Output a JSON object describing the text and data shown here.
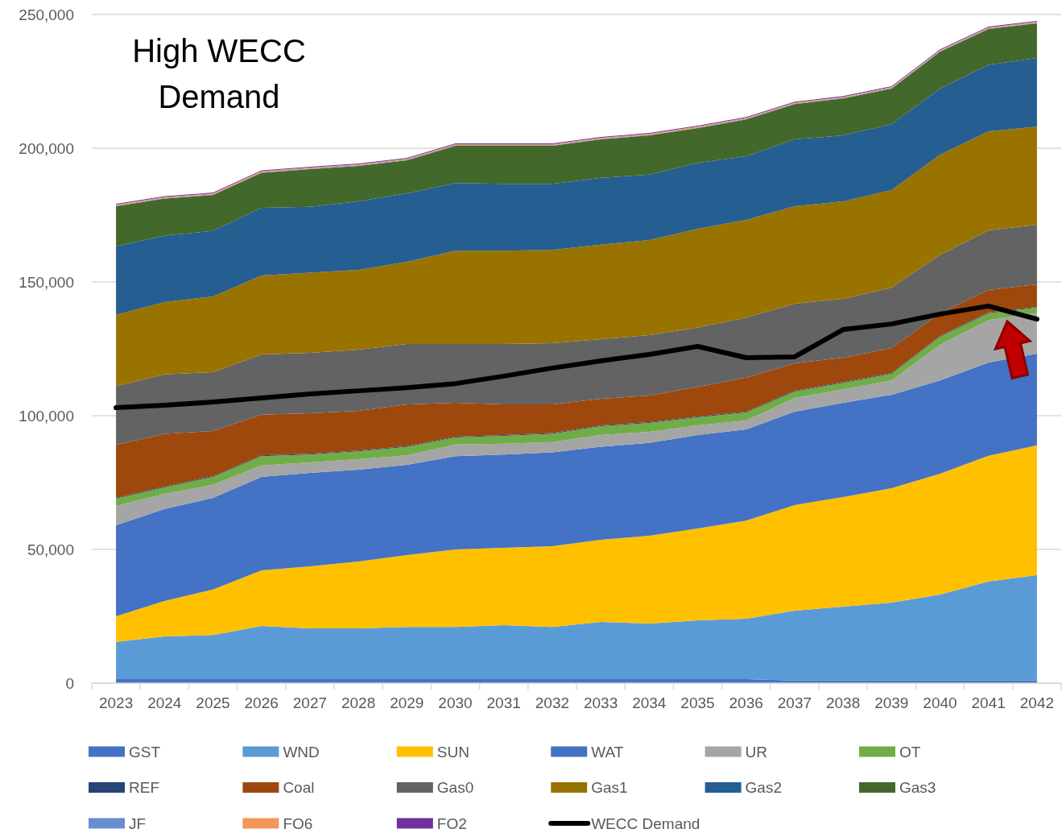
{
  "chart_data": {
    "type": "area",
    "stacked": true,
    "title": "High WECC Demand",
    "categories": [
      "2023",
      "2024",
      "2025",
      "2026",
      "2027",
      "2028",
      "2029",
      "2030",
      "2031",
      "2032",
      "2033",
      "2034",
      "2035",
      "2036",
      "2037",
      "2038",
      "2039",
      "2040",
      "2041",
      "2042"
    ],
    "series": [
      {
        "name": "GST",
        "color": "#4472c4",
        "values": [
          1500,
          1500,
          1500,
          1500,
          1500,
          1500,
          1500,
          1500,
          1500,
          1500,
          1500,
          1500,
          1500,
          1500,
          1000,
          1000,
          1000,
          1000,
          1000,
          1000
        ]
      },
      {
        "name": "WND",
        "color": "#5b9bd5",
        "values": [
          13900,
          16000,
          16500,
          19900,
          19000,
          19000,
          19500,
          19500,
          20200,
          19500,
          21400,
          20800,
          22000,
          22600,
          26100,
          27600,
          29100,
          32100,
          37000,
          39400
        ]
      },
      {
        "name": "SUN",
        "color": "#ffc000",
        "values": [
          9600,
          13200,
          17000,
          20800,
          23200,
          25000,
          26900,
          29000,
          28900,
          30200,
          30700,
          32800,
          34300,
          36700,
          39500,
          41000,
          42800,
          45200,
          47000,
          48500
        ]
      },
      {
        "name": "WAT",
        "color": "#4472c4",
        "values": [
          34000,
          34400,
          34300,
          34900,
          34900,
          34300,
          33700,
          34900,
          34900,
          35100,
          34800,
          34700,
          35000,
          34100,
          34900,
          35200,
          34900,
          34900,
          34900,
          34300
        ]
      },
      {
        "name": "UR",
        "color": "#a5a5a5",
        "values": [
          7300,
          5700,
          4900,
          4300,
          3900,
          3900,
          3600,
          4300,
          4000,
          3800,
          4400,
          4200,
          3600,
          3300,
          5100,
          5100,
          5400,
          13300,
          15900,
          15100
        ]
      },
      {
        "name": "OT",
        "color": "#70ad47",
        "values": [
          2700,
          2400,
          2900,
          3500,
          3000,
          3000,
          3100,
          2700,
          3000,
          3100,
          3300,
          3300,
          3000,
          3000,
          2400,
          2400,
          2500,
          3000,
          2500,
          2100
        ]
      },
      {
        "name": "REF",
        "color": "#264478",
        "values": [
          300,
          300,
          300,
          300,
          300,
          300,
          300,
          300,
          300,
          300,
          300,
          300,
          300,
          300,
          300,
          300,
          300,
          300,
          300,
          300
        ]
      },
      {
        "name": "Coal",
        "color": "#9e480e",
        "values": [
          19800,
          19700,
          16900,
          15200,
          15100,
          14800,
          15600,
          12600,
          11400,
          10700,
          9900,
          9900,
          11100,
          12700,
          10300,
          9100,
          9300,
          8500,
          8400,
          8400
        ]
      },
      {
        "name": "Gas0",
        "color": "#636363",
        "values": [
          22000,
          22200,
          22000,
          22500,
          22600,
          22900,
          22600,
          22000,
          22600,
          22900,
          22300,
          22600,
          22200,
          22500,
          22300,
          22000,
          22600,
          21900,
          22300,
          22300
        ]
      },
      {
        "name": "Gas1",
        "color": "#997300",
        "values": [
          26600,
          27100,
          28300,
          29500,
          30000,
          29800,
          30700,
          34900,
          34900,
          34900,
          35300,
          35600,
          36900,
          36500,
          36400,
          36400,
          36400,
          37400,
          37000,
          36700
        ]
      },
      {
        "name": "Gas2",
        "color": "#255e91",
        "values": [
          25600,
          24800,
          24500,
          25300,
          24600,
          25600,
          25600,
          25300,
          25000,
          24700,
          25000,
          24400,
          24600,
          23800,
          25000,
          24700,
          24700,
          24700,
          24900,
          25600
        ]
      },
      {
        "name": "Gas3",
        "color": "#43682b",
        "values": [
          15000,
          13900,
          13400,
          13100,
          14100,
          13300,
          12400,
          13900,
          14200,
          14200,
          14400,
          14700,
          13000,
          13800,
          13200,
          13800,
          13300,
          13800,
          13400,
          13000
        ]
      },
      {
        "name": "JF",
        "color": "#698ed0",
        "values": [
          200,
          200,
          200,
          200,
          200,
          200,
          200,
          200,
          200,
          200,
          200,
          200,
          200,
          200,
          200,
          200,
          200,
          200,
          200,
          200
        ]
      },
      {
        "name": "FO6",
        "color": "#f1975a",
        "values": [
          400,
          400,
          400,
          400,
          400,
          400,
          400,
          400,
          400,
          400,
          400,
          400,
          400,
          400,
          400,
          400,
          400,
          400,
          400,
          400
        ]
      },
      {
        "name": "FO2",
        "color": "#7030a0",
        "values": [
          300,
          300,
          300,
          300,
          300,
          300,
          300,
          300,
          300,
          300,
          300,
          300,
          300,
          300,
          300,
          300,
          300,
          300,
          300,
          300
        ]
      },
      {
        "name": "WECC Demand",
        "type": "line",
        "color": "#000000",
        "values": [
          103000,
          103900,
          105100,
          106600,
          108100,
          109300,
          110500,
          112000,
          114800,
          117800,
          120500,
          122900,
          125900,
          121700,
          122000,
          132200,
          134300,
          138000,
          141000,
          136100
        ]
      }
    ],
    "ylim": [
      0,
      250000
    ],
    "yticks": [
      0,
      {
        "value": 50000,
        "label": "50,000"
      },
      {
        "value": 100000,
        "label": "100,000"
      },
      {
        "value": 150000,
        "label": "150,000"
      },
      {
        "value": 200000,
        "label": "200,000"
      },
      {
        "value": 250000,
        "label": "250,000"
      }
    ],
    "grid": "y",
    "legend": "bottom"
  }
}
